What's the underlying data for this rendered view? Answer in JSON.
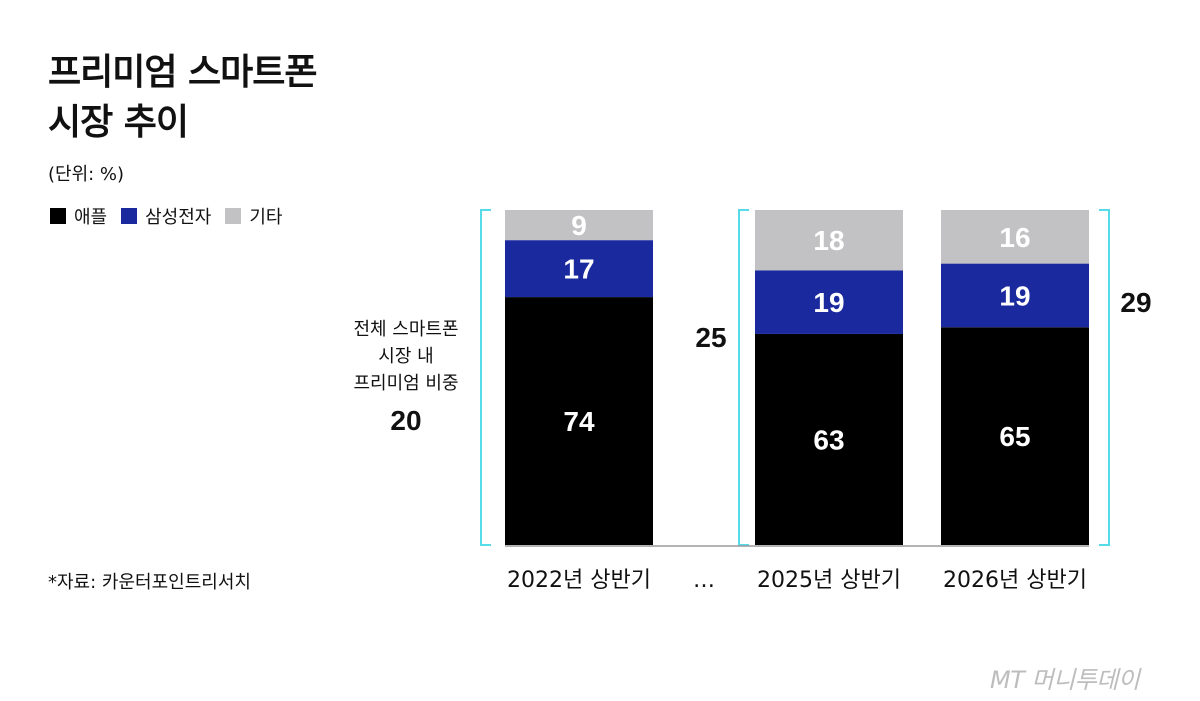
{
  "title": {
    "line1": "프리미엄 스마트폰",
    "line2": "시장 추이"
  },
  "unit": "(단위: %)",
  "legend": [
    {
      "label": "애플",
      "color": "#000000"
    },
    {
      "label": "삼성전자",
      "color": "#1a2a9e"
    },
    {
      "label": "기타",
      "color": "#c2c2c4"
    }
  ],
  "share_label": {
    "line1": "전체 스마트폰",
    "line2": "시장 내",
    "line3": "프리미엄 비중"
  },
  "ellipsis": "…",
  "source": "*자료: 카운터포인트리서치",
  "watermark": "MT 머니투데이",
  "colors": {
    "bracket": "#55dce8",
    "axis": "#9a9a9a"
  },
  "chart_data": {
    "type": "bar",
    "stacked": true,
    "categories": [
      "2022년 상반기",
      "2025년 상반기",
      "2026년 상반기"
    ],
    "series": [
      {
        "name": "애플",
        "values": [
          74,
          63,
          65
        ],
        "color": "#000000"
      },
      {
        "name": "삼성전자",
        "values": [
          17,
          19,
          19
        ],
        "color": "#1a2a9e"
      },
      {
        "name": "기타",
        "values": [
          9,
          18,
          16
        ],
        "color": "#c2c2c4"
      }
    ],
    "premium_share": [
      20,
      25,
      29
    ]
  }
}
